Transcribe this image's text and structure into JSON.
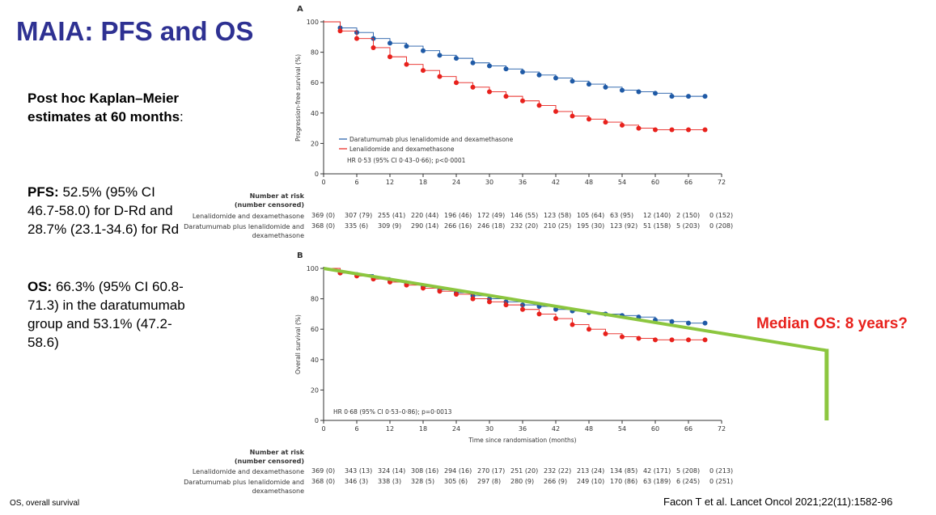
{
  "slide": {
    "title": "MAIA: PFS and OS",
    "estimates_heading": "Post hoc Kaplan–Meier estimates at",
    "estimates_heading_bold_end": "60 months",
    "estimates_colon": ":",
    "pfs_label": "PFS:",
    "pfs_text": " 52.5% (95% CI 46.7-58.0) for D-Rd and 28.7% (23.1-34.6) for Rd",
    "os_label": "OS:",
    "os_text": " 66.3% (95% CI 60.8-71.3) in the daratumumab group and 53.1% (47.2-58.6)",
    "footnote": "OS, overall survival",
    "citation": "Facon T et al. Lancet Oncol 2021;22(11):1582-96",
    "annotation": "Median OS: 8 years?"
  },
  "colors": {
    "drd": "#1f5aa6",
    "rd": "#e8211c",
    "green": "#8cc63f",
    "title": "#2e3192"
  },
  "chart_data": [
    {
      "type": "line",
      "panel": "A",
      "ylabel": "Progression-free survival (%)",
      "xlabel": "",
      "xlim": [
        0,
        72
      ],
      "ylim": [
        0,
        100
      ],
      "xticks": [
        0,
        6,
        12,
        18,
        24,
        30,
        36,
        42,
        48,
        54,
        60,
        66,
        72
      ],
      "yticks": [
        0,
        20,
        40,
        60,
        80,
        100
      ],
      "legend": [
        "Daratumumab plus lenalidomide and dexamethasone",
        "Lenalidomide and dexamethasone"
      ],
      "hr_text": "HR 0·53 (95% CI 0·43–0·66); p<0·0001",
      "series": [
        {
          "name": "Daratumumab plus lenalidomide and dexamethasone",
          "color": "#1f5aa6",
          "x": [
            0,
            3,
            6,
            9,
            12,
            15,
            18,
            21,
            24,
            27,
            30,
            33,
            36,
            39,
            42,
            45,
            48,
            51,
            54,
            57,
            60,
            63,
            66,
            69
          ],
          "y": [
            100,
            96,
            93,
            89,
            86,
            84,
            81,
            78,
            76,
            73,
            71,
            69,
            67,
            65,
            63,
            61,
            59,
            57,
            55,
            54,
            53,
            51,
            51,
            51
          ]
        },
        {
          "name": "Lenalidomide and dexamethasone",
          "color": "#e8211c",
          "x": [
            0,
            3,
            6,
            9,
            12,
            15,
            18,
            21,
            24,
            27,
            30,
            33,
            36,
            39,
            42,
            45,
            48,
            51,
            54,
            57,
            60,
            63,
            66,
            69
          ],
          "y": [
            100,
            94,
            89,
            83,
            77,
            72,
            68,
            64,
            60,
            57,
            54,
            51,
            48,
            45,
            41,
            38,
            36,
            34,
            32,
            30,
            29,
            29,
            29,
            29
          ]
        }
      ],
      "risk_table": {
        "header": [
          "Number at risk",
          "(number censored)"
        ],
        "rows": [
          {
            "label": "Lenalidomide and dexamethasone",
            "values": [
              "369 (0)",
              "307 (79)",
              "255 (41)",
              "220 (44)",
              "196 (46)",
              "172 (49)",
              "146 (55)",
              "123 (58)",
              "105 (64)",
              "63 (95)",
              "12 (140)",
              "2 (150)",
              "0 (152)"
            ]
          },
          {
            "label": "Daratumumab plus lenalidomide and dexamethasone",
            "values": [
              "368 (0)",
              "335 (6)",
              "309 (9)",
              "290 (14)",
              "266 (16)",
              "246 (18)",
              "232 (20)",
              "210 (25)",
              "195 (30)",
              "123 (92)",
              "51 (158)",
              "5 (203)",
              "0 (208)"
            ]
          }
        ]
      }
    },
    {
      "type": "line",
      "panel": "B",
      "ylabel": "Overall survival (%)",
      "xlabel": "Time since randomisation (months)",
      "xlim": [
        0,
        72
      ],
      "ylim": [
        0,
        100
      ],
      "xticks": [
        0,
        6,
        12,
        18,
        24,
        30,
        36,
        42,
        48,
        54,
        60,
        66,
        72
      ],
      "yticks": [
        0,
        20,
        40,
        60,
        80,
        100
      ],
      "hr_text": "HR 0·68 (95% CI 0·53–0·86); p=0·0013",
      "series": [
        {
          "name": "Daratumumab plus lenalidomide and dexamethasone",
          "color": "#1f5aa6",
          "x": [
            0,
            3,
            6,
            9,
            12,
            15,
            18,
            21,
            24,
            27,
            30,
            33,
            36,
            39,
            42,
            45,
            48,
            51,
            54,
            57,
            60,
            63,
            66,
            69
          ],
          "y": [
            100,
            97,
            96,
            94,
            92,
            90,
            88,
            86,
            84,
            82,
            80,
            78,
            76,
            75,
            73,
            72,
            71,
            70,
            69,
            68,
            66,
            65,
            64,
            64
          ]
        },
        {
          "name": "Lenalidomide and dexamethasone",
          "color": "#e8211c",
          "x": [
            0,
            3,
            6,
            9,
            12,
            15,
            18,
            21,
            24,
            27,
            30,
            33,
            36,
            39,
            42,
            45,
            48,
            51,
            54,
            57,
            60,
            63,
            66,
            69
          ],
          "y": [
            100,
            97,
            95,
            93,
            91,
            89,
            87,
            85,
            83,
            80,
            78,
            76,
            73,
            70,
            67,
            63,
            60,
            57,
            55,
            54,
            53,
            53,
            53,
            53
          ]
        }
      ],
      "risk_table": {
        "header": [
          "Number at risk",
          "(number censored)"
        ],
        "rows": [
          {
            "label": "Lenalidomide and dexamethasone",
            "values": [
              "369 (0)",
              "343 (13)",
              "324 (14)",
              "308 (16)",
              "294 (16)",
              "270 (17)",
              "251 (20)",
              "232 (22)",
              "213 (24)",
              "134 (85)",
              "42 (171)",
              "5 (208)",
              "0 (213)"
            ]
          },
          {
            "label": "Daratumumab plus lenalidomide and dexamethasone",
            "values": [
              "368 (0)",
              "346 (3)",
              "338 (3)",
              "328 (5)",
              "305 (6)",
              "297 (8)",
              "280 (9)",
              "266 (9)",
              "249 (10)",
              "170 (86)",
              "63 (189)",
              "6 (245)",
              "0 (251)"
            ]
          }
        ]
      },
      "extrapolation": {
        "x": [
          0,
          91
        ],
        "y": [
          100,
          46
        ],
        "drop_to_y": 0
      }
    }
  ]
}
